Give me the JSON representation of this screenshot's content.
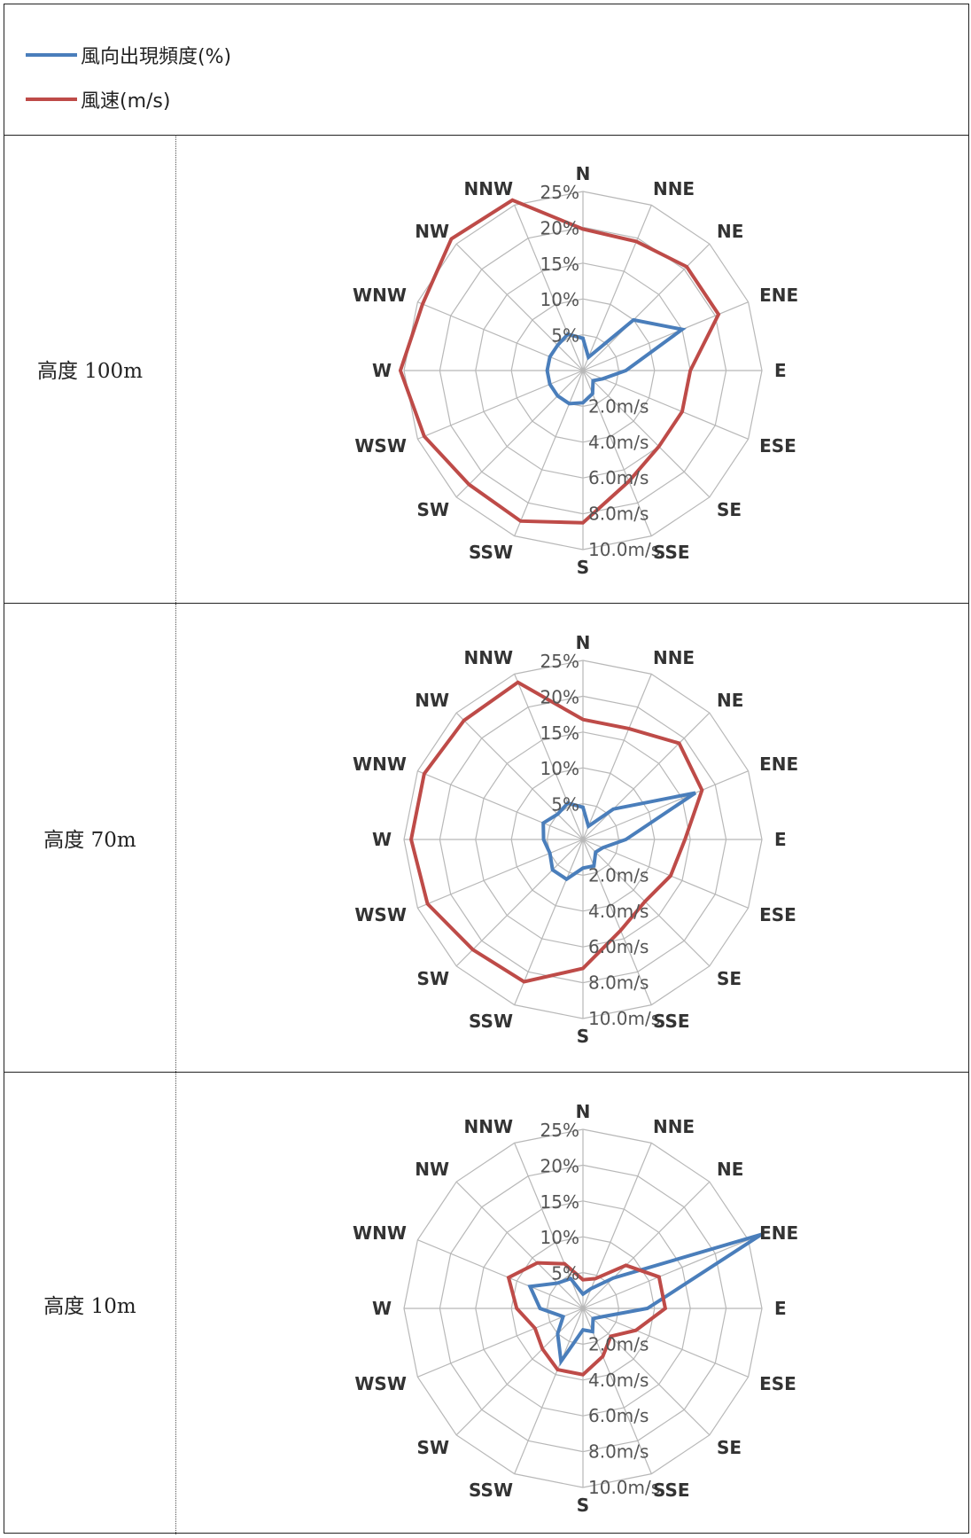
{
  "legend": [
    {
      "label": "風向出現頻度(%)",
      "color": "#4a7ebb"
    },
    {
      "label": "風速(m/s)",
      "color": "#be4b48"
    }
  ],
  "chart_data": [
    {
      "type": "radar",
      "row_label": "高度 100m",
      "directions": [
        "N",
        "NNE",
        "NE",
        "ENE",
        "E",
        "ESE",
        "SE",
        "SSE",
        "S",
        "SSW",
        "SW",
        "WSW",
        "W",
        "WNW",
        "NW",
        "NNW"
      ],
      "freq_ticks": [
        "5%",
        "10%",
        "15%",
        "20%",
        "25%"
      ],
      "speed_ticks": [
        "2.0m/s",
        "4.0m/s",
        "6.0m/s",
        "8.0m/s",
        "10.0m/s"
      ],
      "series": [
        {
          "name": "風向出現頻度(%)",
          "color": "#4a7ebb",
          "values": [
            4.5,
            2,
            10,
            15,
            6,
            3,
            2,
            3.5,
            4.5,
            5,
            5,
            5,
            5,
            5,
            5,
            5.5
          ]
        },
        {
          "name": "風速(m/s)",
          "color": "#be4b48",
          "values": [
            7.9,
            7.8,
            8.2,
            8.2,
            6,
            6,
            6,
            6.7,
            8.5,
            9.1,
            9,
            9.6,
            10.2,
            9.7,
            10.4,
            10.3
          ]
        }
      ]
    },
    {
      "type": "radar",
      "row_label": "高度 70m",
      "directions": [
        "N",
        "NNE",
        "NE",
        "ENE",
        "E",
        "ESE",
        "SE",
        "SSE",
        "S",
        "SSW",
        "SW",
        "WSW",
        "W",
        "WNW",
        "NW",
        "NNW"
      ],
      "freq_ticks": [
        "5%",
        "10%",
        "15%",
        "20%",
        "25%"
      ],
      "speed_ticks": [
        "2.0m/s",
        "4.0m/s",
        "6.0m/s",
        "8.0m/s",
        "10.0m/s"
      ],
      "series": [
        {
          "name": "風向出現頻度(%)",
          "color": "#4a7ebb",
          "values": [
            4.5,
            2,
            6,
            17,
            6,
            3,
            2.5,
            4,
            4,
            6,
            6,
            5,
            5.5,
            6,
            5,
            5.5
          ]
        },
        {
          "name": "風速(m/s)",
          "color": "#be4b48",
          "values": [
            6.7,
            6.7,
            7.6,
            7.2,
            5.7,
            5.3,
            4.9,
            5.5,
            7.2,
            8.6,
            8.7,
            9.4,
            9.6,
            9.6,
            9.4,
            9.5
          ]
        }
      ]
    },
    {
      "type": "radar",
      "row_label": "高度 10m",
      "directions": [
        "N",
        "NNE",
        "NE",
        "ENE",
        "E",
        "ESE",
        "SE",
        "SSE",
        "S",
        "SSW",
        "SW",
        "WSW",
        "W",
        "WNW",
        "NW",
        "NNW"
      ],
      "freq_ticks": [
        "5%",
        "10%",
        "15%",
        "20%",
        "25%"
      ],
      "speed_ticks": [
        "2.0m/s",
        "4.0m/s",
        "6.0m/s",
        "8.0m/s",
        "10.0m/s"
      ],
      "series": [
        {
          "name": "風向出現頻度(%)",
          "color": "#4a7ebb",
          "values": [
            2,
            3,
            6,
            27,
            9,
            3,
            2,
            3.5,
            3,
            8,
            5,
            3,
            6,
            8,
            5,
            4.5
          ]
        },
        {
          "name": "風速(m/s)",
          "color": "#be4b48",
          "values": [
            1.6,
            1.8,
            3.4,
            4.6,
            4.6,
            3.2,
            2.2,
            2.9,
            3.7,
            3.7,
            3.2,
            2.9,
            3.7,
            4.5,
            3.6,
            2.7
          ]
        }
      ]
    }
  ]
}
